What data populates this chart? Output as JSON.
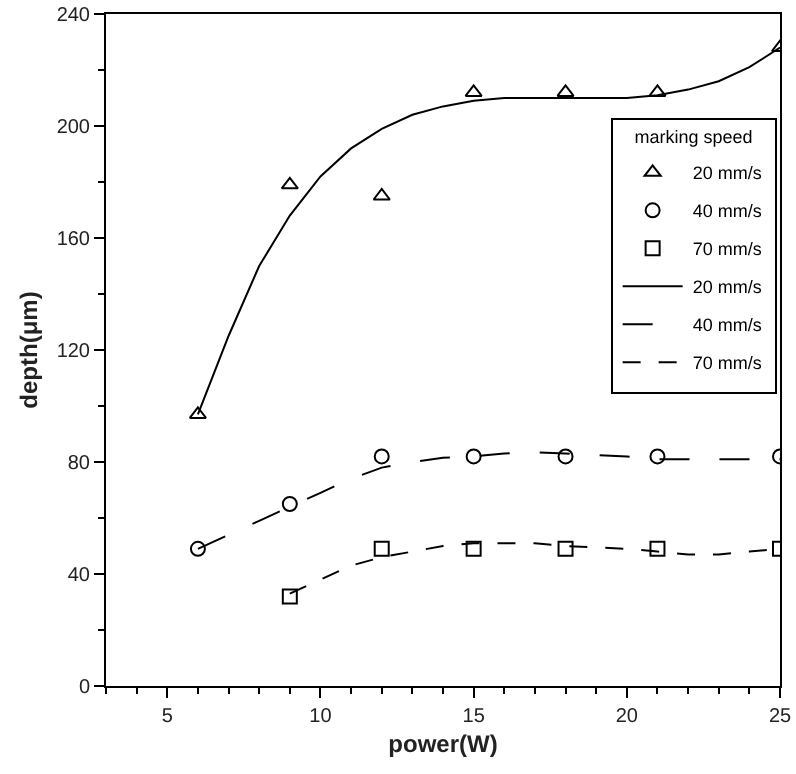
{
  "chart_data": {
    "type": "scatter",
    "xlabel": "power(W)",
    "ylabel": "depth(μm)",
    "legend_title": "marking speed",
    "legend": "right",
    "xlim": [
      3,
      25
    ],
    "xticks": [
      5,
      10,
      15,
      20,
      25
    ],
    "ylim": [
      0,
      240
    ],
    "yticks": [
      0,
      40,
      80,
      120,
      160,
      200,
      240
    ],
    "grid": false,
    "series": [
      {
        "name": "20 mm/s",
        "marker": "triangle",
        "color": "#000000",
        "x": [
          6,
          9,
          12,
          15,
          18,
          21,
          25
        ],
        "values": [
          97,
          179,
          175,
          212,
          212,
          212,
          228
        ]
      },
      {
        "name": "40 mm/s",
        "marker": "circle",
        "color": "#000000",
        "x": [
          6,
          9,
          12,
          15,
          18,
          21,
          25
        ],
        "values": [
          49,
          65,
          82,
          82,
          82,
          82,
          82
        ]
      },
      {
        "name": "70 mm/s",
        "marker": "square",
        "color": "#000000",
        "x": [
          9,
          12,
          15,
          18,
          21,
          25
        ],
        "values": [
          32,
          49,
          49,
          49,
          49,
          49
        ]
      },
      {
        "name": "20 mm/s",
        "type": "line",
        "line_style": "solid",
        "color": "#000000",
        "x": [
          6,
          7,
          8,
          9,
          10,
          11,
          12,
          13,
          14,
          15,
          16,
          18,
          20,
          21,
          22,
          23,
          24,
          25
        ],
        "values": [
          97,
          125,
          150,
          168,
          182,
          192,
          199,
          204,
          207,
          209,
          210,
          210,
          210,
          211,
          213,
          216,
          221,
          228
        ]
      },
      {
        "name": "40 mm/s",
        "type": "line",
        "line_style": "longdash",
        "color": "#000000",
        "x": [
          6,
          8,
          9,
          10,
          11,
          12,
          13,
          14,
          15,
          16,
          17,
          18,
          20,
          21,
          23,
          25
        ],
        "values": [
          49,
          59,
          64,
          69,
          74,
          78,
          80,
          81.5,
          82,
          83,
          83.5,
          83,
          82,
          81,
          81,
          81
        ]
      },
      {
        "name": "70 mm/s",
        "type": "line",
        "line_style": "dashed",
        "color": "#000000",
        "x": [
          9,
          10,
          11,
          12,
          13,
          14,
          15,
          16,
          17,
          18,
          19,
          20,
          21,
          22,
          23,
          24,
          25
        ],
        "values": [
          33,
          38,
          43,
          46,
          48,
          50,
          51,
          51,
          51,
          50,
          49.5,
          49,
          48,
          47,
          47,
          48,
          49
        ]
      }
    ]
  }
}
